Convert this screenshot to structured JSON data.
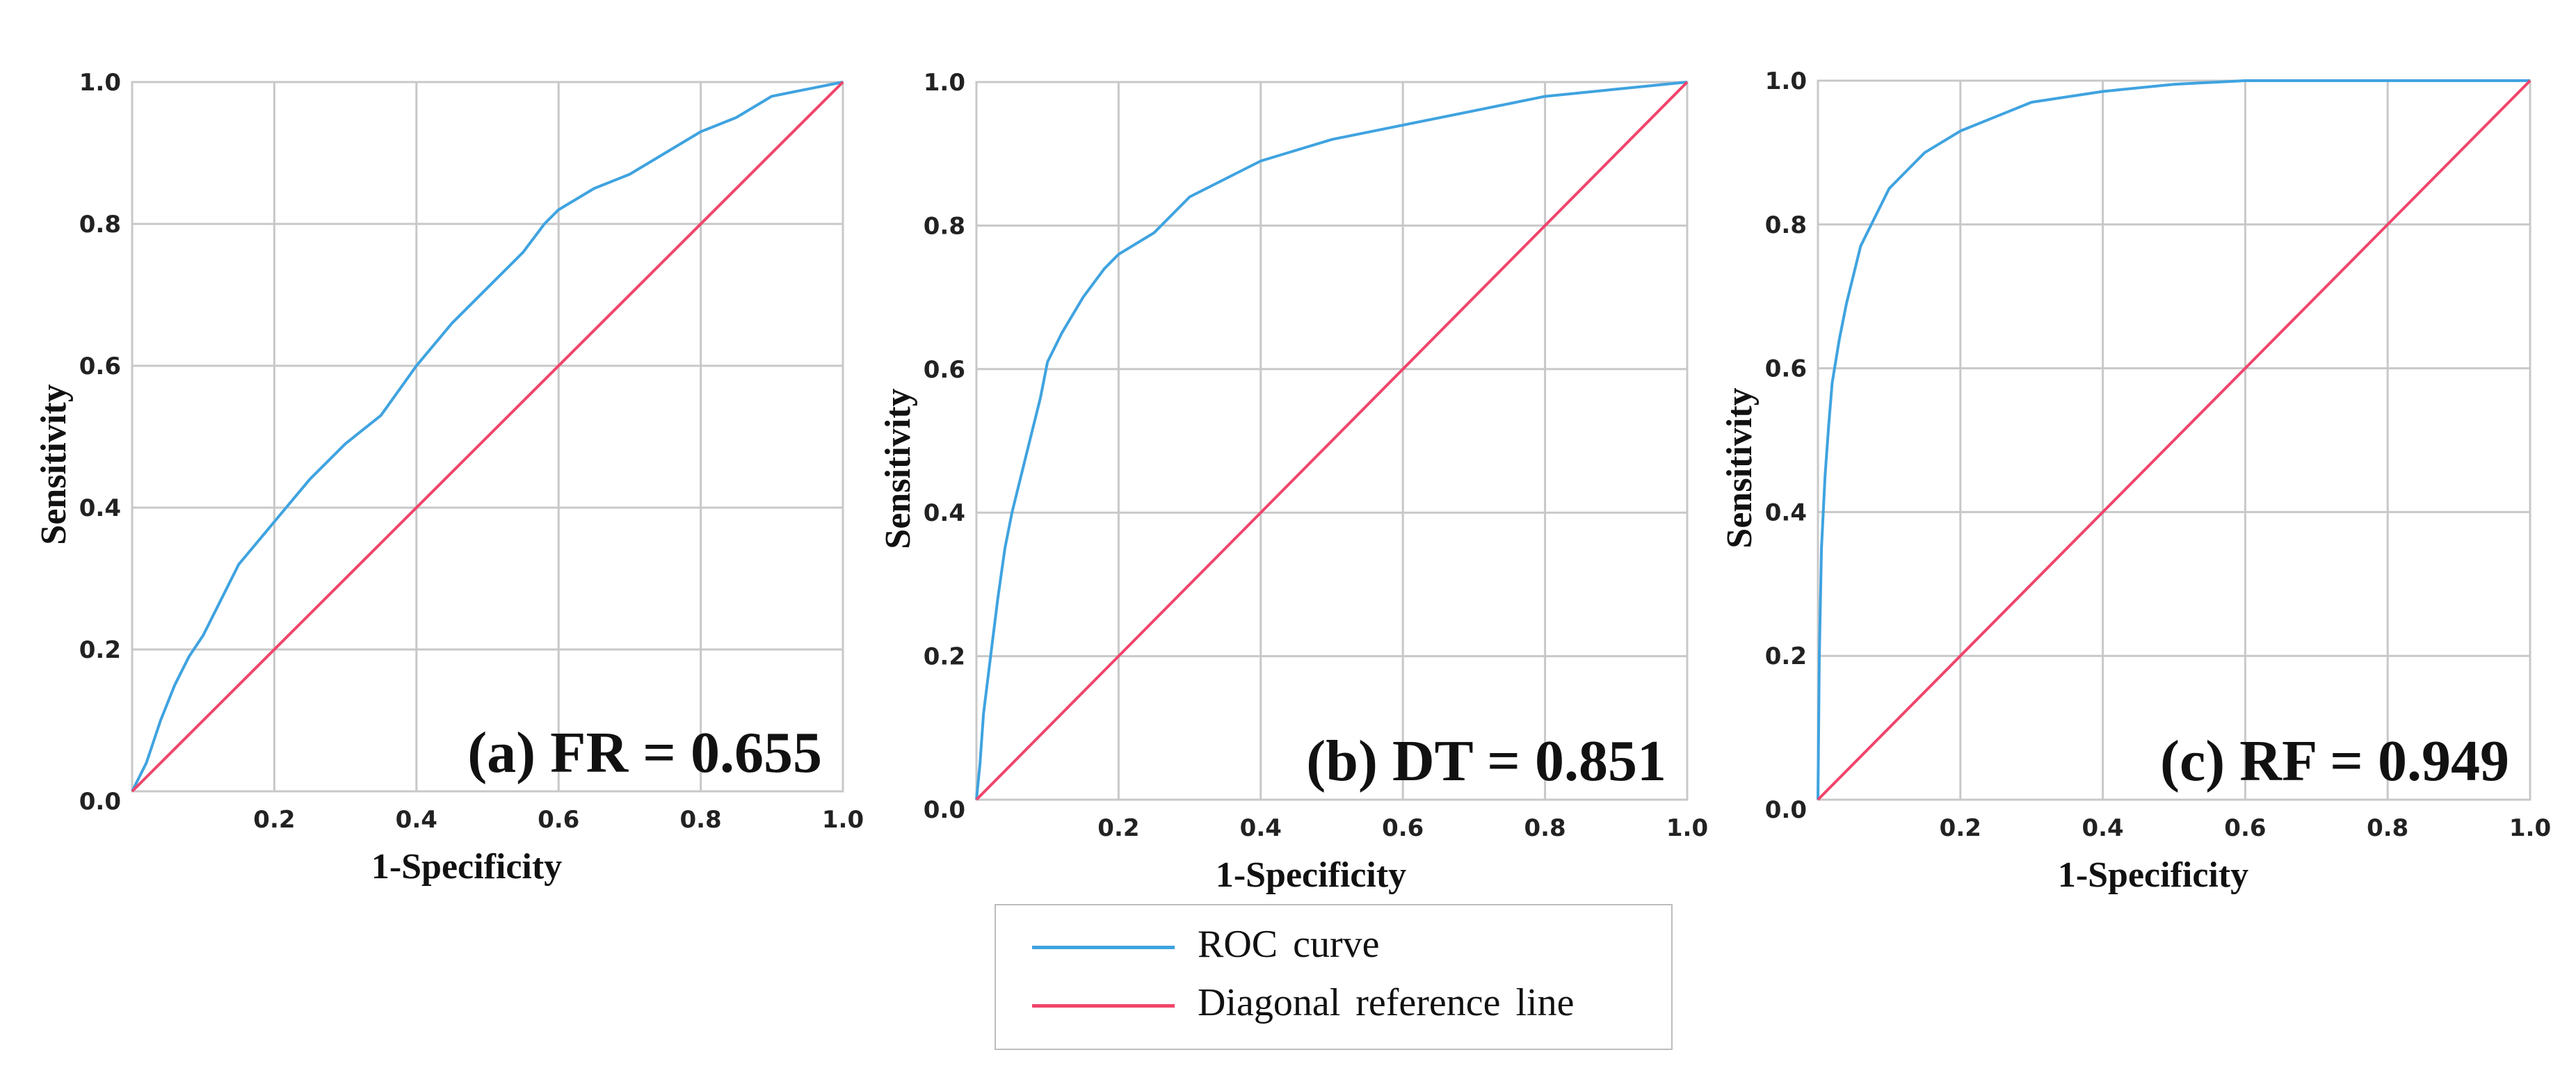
{
  "colors": {
    "roc": "#3fa3e0",
    "diagonal": "#f0456b",
    "grid": "#c8c8c8"
  },
  "legend": {
    "roc_label": "ROC curve",
    "diagonal_label": "Diagonal reference line"
  },
  "chart_data": [
    {
      "type": "line",
      "panel": "a",
      "annotation": "(a) FR = 0.655",
      "xlabel": "1-Specificity",
      "ylabel": "Sensitivity",
      "xlim": [
        0,
        1
      ],
      "ylim": [
        0,
        1
      ],
      "xticks": [
        "0.2",
        "0.4",
        "0.6",
        "0.8",
        "1.0"
      ],
      "yticks": [
        "0.0",
        "0.2",
        "0.4",
        "0.6",
        "0.8",
        "1.0"
      ],
      "grid": true,
      "series": [
        {
          "name": "ROC curve",
          "x": [
            0,
            0.02,
            0.04,
            0.06,
            0.08,
            0.1,
            0.12,
            0.15,
            0.2,
            0.25,
            0.3,
            0.35,
            0.4,
            0.45,
            0.5,
            0.55,
            0.58,
            0.6,
            0.65,
            0.7,
            0.75,
            0.8,
            0.85,
            0.9,
            0.95,
            1.0
          ],
          "y": [
            0,
            0.04,
            0.1,
            0.15,
            0.19,
            0.22,
            0.26,
            0.32,
            0.38,
            0.44,
            0.49,
            0.53,
            0.6,
            0.66,
            0.71,
            0.76,
            0.8,
            0.82,
            0.85,
            0.87,
            0.9,
            0.93,
            0.95,
            0.98,
            0.99,
            1.0
          ]
        },
        {
          "name": "Diagonal reference line",
          "x": [
            0,
            1
          ],
          "y": [
            0,
            1
          ]
        }
      ]
    },
    {
      "type": "line",
      "panel": "b",
      "annotation": "(b) DT = 0.851",
      "xlabel": "1-Specificity",
      "ylabel": "Sensitivity",
      "xlim": [
        0,
        1
      ],
      "ylim": [
        0,
        1
      ],
      "xticks": [
        "0.2",
        "0.4",
        "0.6",
        "0.8",
        "1.0"
      ],
      "yticks": [
        "0.0",
        "0.2",
        "0.4",
        "0.6",
        "0.8",
        "1.0"
      ],
      "grid": true,
      "series": [
        {
          "name": "ROC curve",
          "x": [
            0,
            0.005,
            0.01,
            0.02,
            0.03,
            0.04,
            0.05,
            0.07,
            0.09,
            0.1,
            0.12,
            0.15,
            0.18,
            0.2,
            0.25,
            0.3,
            0.4,
            0.5,
            0.6,
            0.7,
            0.8,
            0.9,
            1.0
          ],
          "y": [
            0,
            0.05,
            0.12,
            0.2,
            0.28,
            0.35,
            0.4,
            0.48,
            0.56,
            0.61,
            0.65,
            0.7,
            0.74,
            0.76,
            0.79,
            0.84,
            0.89,
            0.92,
            0.94,
            0.96,
            0.98,
            0.99,
            1.0
          ]
        },
        {
          "name": "Diagonal reference line",
          "x": [
            0,
            1
          ],
          "y": [
            0,
            1
          ]
        }
      ]
    },
    {
      "type": "line",
      "panel": "c",
      "annotation": "(c) RF = 0.949",
      "xlabel": "1-Specificity",
      "ylabel": "Sensitivity",
      "xlim": [
        0,
        1
      ],
      "ylim": [
        0,
        1
      ],
      "xticks": [
        "0.2",
        "0.4",
        "0.6",
        "0.8",
        "1.0"
      ],
      "yticks": [
        "0.0",
        "0.2",
        "0.4",
        "0.6",
        "0.8",
        "1.0"
      ],
      "grid": true,
      "series": [
        {
          "name": "ROC curve",
          "x": [
            0,
            0.002,
            0.005,
            0.01,
            0.015,
            0.02,
            0.03,
            0.04,
            0.05,
            0.06,
            0.08,
            0.1,
            0.12,
            0.15,
            0.2,
            0.25,
            0.3,
            0.4,
            0.5,
            0.6,
            0.7,
            0.8,
            0.9,
            1.0
          ],
          "y": [
            0,
            0.2,
            0.35,
            0.45,
            0.52,
            0.58,
            0.64,
            0.69,
            0.73,
            0.77,
            0.81,
            0.85,
            0.87,
            0.9,
            0.93,
            0.95,
            0.97,
            0.985,
            0.995,
            1.0,
            1.0,
            1.0,
            1.0,
            1.0
          ]
        },
        {
          "name": "Diagonal reference line",
          "x": [
            0,
            1
          ],
          "y": [
            0,
            1
          ]
        }
      ]
    }
  ]
}
